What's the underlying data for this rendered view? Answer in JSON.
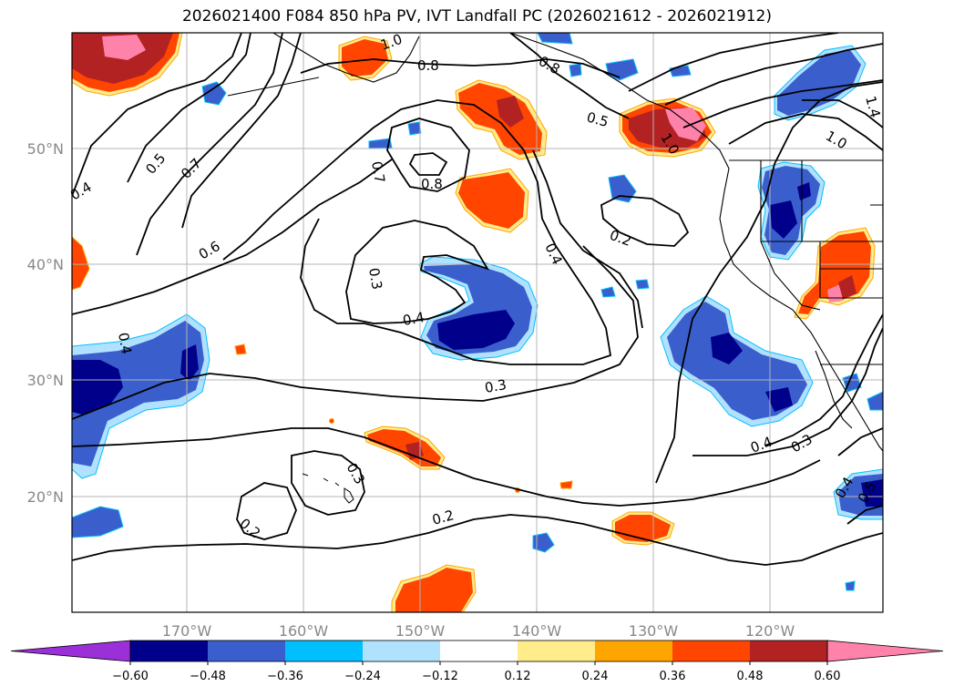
{
  "title": "2026021400 F084 850 hPa PV, IVT Landfall PC (2026021612 - 2026021912)",
  "map": {
    "lon_ticks": [
      "170°W",
      "160°W",
      "150°W",
      "140°W",
      "130°W",
      "120°W"
    ],
    "lat_ticks": [
      "50°N",
      "40°N",
      "30°N",
      "20°N"
    ],
    "contour_labels": [
      {
        "text": "0.8"
      },
      {
        "text": "0.8"
      },
      {
        "text": "0.5"
      },
      {
        "text": "1.0"
      },
      {
        "text": "1.0"
      },
      {
        "text": "1.4"
      },
      {
        "text": "1.0"
      },
      {
        "text": "0.5"
      },
      {
        "text": "0.7"
      },
      {
        "text": "0.4"
      },
      {
        "text": "0.7"
      },
      {
        "text": "0.8"
      },
      {
        "text": "0.6"
      },
      {
        "text": "0.3"
      },
      {
        "text": "0.4"
      },
      {
        "text": "0.4"
      },
      {
        "text": "0.2"
      },
      {
        "text": "0.4"
      },
      {
        "text": "0.3"
      },
      {
        "text": "0.4"
      },
      {
        "text": "0.3"
      },
      {
        "text": "0.3"
      },
      {
        "text": "0.2"
      },
      {
        "text": "0.2"
      },
      {
        "text": "0.4"
      },
      {
        "text": "0.5"
      }
    ]
  },
  "colorbar": {
    "colors": [
      "#9b30d9",
      "#00008b",
      "#3a5fcd",
      "#00bfff",
      "#b0e2ff",
      "#ffffff",
      "#ffec8b",
      "#ffa500",
      "#ff4500",
      "#b22222",
      "#ff82ab"
    ],
    "labels": [
      "−0.60",
      "−0.48",
      "−0.36",
      "−0.24",
      "−0.12",
      "0.12",
      "0.24",
      "0.36",
      "0.48",
      "0.60"
    ]
  }
}
